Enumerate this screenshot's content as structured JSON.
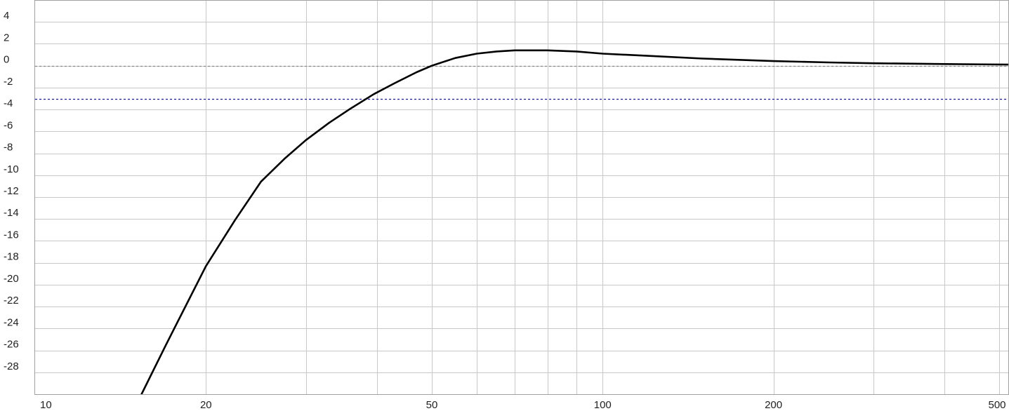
{
  "chart_data": {
    "type": "line",
    "title": "",
    "xlabel": "",
    "ylabel": "",
    "x_scale": "log",
    "xlim": [
      10,
      520
    ],
    "ylim": [
      -30,
      6
    ],
    "grid": true,
    "x_ticks": [
      {
        "value": 10,
        "label": "10"
      },
      {
        "value": 20,
        "label": "20"
      },
      {
        "value": 50,
        "label": "50"
      },
      {
        "value": 100,
        "label": "100"
      },
      {
        "value": 200,
        "label": "200"
      },
      {
        "value": 500,
        "label": "500"
      }
    ],
    "x_grid": [
      20,
      30,
      40,
      50,
      60,
      70,
      80,
      90,
      100,
      200,
      300,
      400,
      500
    ],
    "y_ticks": [
      4,
      2,
      0,
      -2,
      -4,
      -6,
      -8,
      -10,
      -12,
      -14,
      -16,
      -18,
      -20,
      -22,
      -24,
      -26,
      -28
    ],
    "reference_lines": [
      {
        "y": 0,
        "color": "#888888",
        "style": "dotted"
      },
      {
        "y": -3,
        "color": "#1a1a8c",
        "style": "dotted"
      }
    ],
    "series": [
      {
        "color": "#000000",
        "x": [
          15.4,
          17,
          20,
          22.5,
          25,
          27.5,
          30,
          33,
          36,
          39.5,
          43,
          47,
          50,
          55,
          60,
          65,
          70,
          75,
          80,
          90,
          100,
          120,
          150,
          200,
          250,
          300,
          400,
          520
        ],
        "y": [
          -30,
          -25.5,
          -18.3,
          -14.1,
          -10.6,
          -8.5,
          -6.8,
          -5.2,
          -3.9,
          -2.6,
          -1.6,
          -0.6,
          0,
          0.7,
          1.1,
          1.3,
          1.4,
          1.4,
          1.4,
          1.3,
          1.1,
          0.9,
          0.65,
          0.42,
          0.3,
          0.22,
          0.15,
          0.1
        ]
      }
    ]
  }
}
